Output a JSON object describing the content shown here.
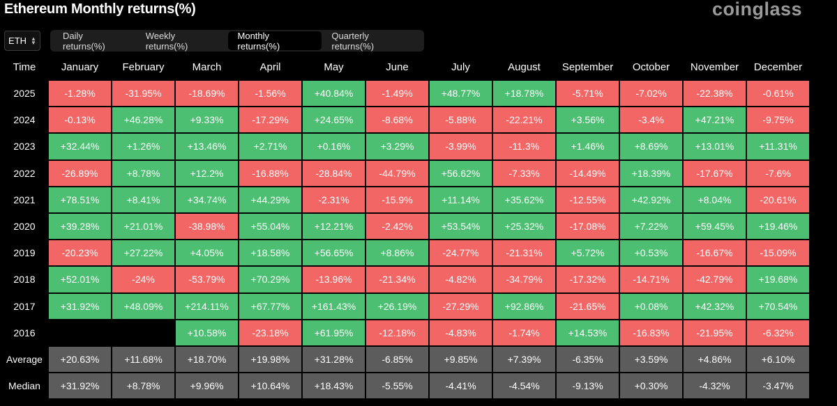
{
  "header": {
    "title": "Ethereum Monthly returns(%)",
    "brand": "coinglass"
  },
  "coin_select": {
    "value": "ETH"
  },
  "tabs": [
    {
      "label": "Daily returns(%)",
      "active": false
    },
    {
      "label": "Weekly returns(%)",
      "active": false
    },
    {
      "label": "Monthly returns(%)",
      "active": true
    },
    {
      "label": "Quarterly returns(%)",
      "active": false
    }
  ],
  "colors": {
    "positive": "#4cbf72",
    "negative": "#f26766",
    "summary": "#5c5c5c"
  },
  "table": {
    "corner_label": "Time",
    "columns": [
      "January",
      "February",
      "March",
      "April",
      "May",
      "June",
      "July",
      "August",
      "September",
      "October",
      "November",
      "December"
    ],
    "rows": [
      {
        "label": "2025",
        "values": [
          "-1.28%",
          "-31.95%",
          "-18.69%",
          "-1.56%",
          "+40.84%",
          "-1.49%",
          "+48.77%",
          "+18.78%",
          "-5.71%",
          "-7.02%",
          "-22.38%",
          "-0.61%"
        ]
      },
      {
        "label": "2024",
        "values": [
          "-0.13%",
          "+46.28%",
          "+9.33%",
          "-17.29%",
          "+24.65%",
          "-8.68%",
          "-5.88%",
          "-22.21%",
          "+3.56%",
          "-3.4%",
          "+47.21%",
          "-9.75%"
        ]
      },
      {
        "label": "2023",
        "values": [
          "+32.44%",
          "+1.26%",
          "+13.46%",
          "+2.71%",
          "+0.16%",
          "+3.29%",
          "-3.99%",
          "-11.3%",
          "+1.46%",
          "+8.69%",
          "+13.01%",
          "+11.31%"
        ]
      },
      {
        "label": "2022",
        "values": [
          "-26.89%",
          "+8.78%",
          "+12.2%",
          "-16.88%",
          "-28.84%",
          "-44.79%",
          "+56.62%",
          "-7.33%",
          "-14.49%",
          "+18.39%",
          "-17.67%",
          "-7.6%"
        ]
      },
      {
        "label": "2021",
        "values": [
          "+78.51%",
          "+8.41%",
          "+34.74%",
          "+44.29%",
          "-2.31%",
          "-15.9%",
          "+11.14%",
          "+35.62%",
          "-12.55%",
          "+42.92%",
          "+8.04%",
          "-20.61%"
        ]
      },
      {
        "label": "2020",
        "values": [
          "+39.28%",
          "+21.01%",
          "-38.98%",
          "+55.04%",
          "+12.21%",
          "-2.42%",
          "+53.54%",
          "+25.32%",
          "-17.08%",
          "+7.22%",
          "+59.45%",
          "+19.46%"
        ]
      },
      {
        "label": "2019",
        "values": [
          "-20.23%",
          "+27.22%",
          "+4.05%",
          "+18.58%",
          "+56.65%",
          "+8.86%",
          "-24.77%",
          "-21.31%",
          "+5.72%",
          "+0.53%",
          "-16.67%",
          "-15.09%"
        ]
      },
      {
        "label": "2018",
        "values": [
          "+52.01%",
          "-24%",
          "-53.79%",
          "+70.29%",
          "-13.96%",
          "-21.34%",
          "-4.82%",
          "-34.79%",
          "-17.32%",
          "-14.71%",
          "-42.79%",
          "+19.68%"
        ]
      },
      {
        "label": "2017",
        "values": [
          "+31.92%",
          "+48.09%",
          "+214.11%",
          "+67.77%",
          "+161.43%",
          "+26.19%",
          "-27.29%",
          "+92.86%",
          "-21.65%",
          "+0.08%",
          "+42.32%",
          "+70.54%"
        ]
      },
      {
        "label": "2016",
        "values": [
          "",
          "",
          "+10.58%",
          "-23.18%",
          "+61.95%",
          "-12.18%",
          "-4.83%",
          "-1.74%",
          "+14.53%",
          "-16.83%",
          "-21.95%",
          "-6.32%"
        ]
      }
    ],
    "summary": [
      {
        "label": "Average",
        "values": [
          "+20.63%",
          "+11.68%",
          "+18.70%",
          "+19.98%",
          "+31.28%",
          "-6.85%",
          "+9.85%",
          "+7.39%",
          "-6.35%",
          "+3.59%",
          "+4.86%",
          "+6.10%"
        ]
      },
      {
        "label": "Median",
        "values": [
          "+31.92%",
          "+8.78%",
          "+9.96%",
          "+10.64%",
          "+18.43%",
          "-5.55%",
          "-4.41%",
          "-4.54%",
          "-9.13%",
          "+0.30%",
          "-4.32%",
          "-3.47%"
        ]
      }
    ]
  }
}
